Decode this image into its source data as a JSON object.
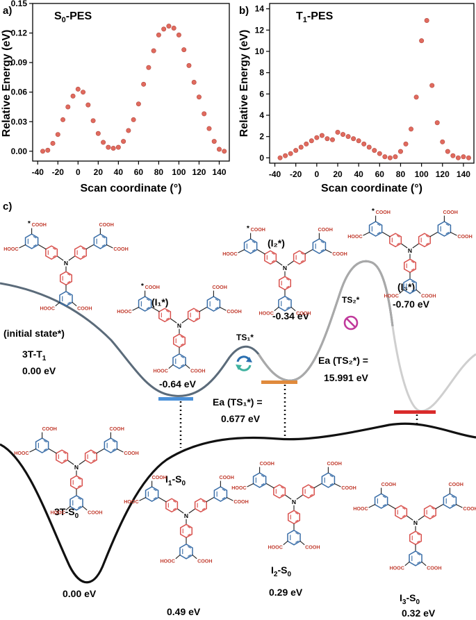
{
  "panel_a": {
    "label": "a)",
    "title_main": "S",
    "title_sub": "0",
    "title_tail": "-PES",
    "xlabel": "Scan coordinate (°)",
    "ylabel": "Relative Energy (eV)"
  },
  "panel_b": {
    "label": "b)",
    "title_main": "T",
    "title_sub": "1",
    "title_tail": "-PES",
    "xlabel": "Scan coordinate (°)",
    "ylabel": "Relative Energy (eV)"
  },
  "panel_c": {
    "label": "c)",
    "initial_state_label": "(initial state*)",
    "t1_state_main": "3T-T",
    "t1_state_sub": "1",
    "t1_state_energy": "0.00 eV",
    "i1_label": "(I₁*)",
    "i1_energy": "-0.64 eV",
    "ts1_label": "TS₁*",
    "i2_label": "(I₂*)",
    "i2_energy": "-0.34 eV",
    "ts2_label": "TS₂*",
    "i3_label": "(I₃*)",
    "i3_energy": "-0.70 eV",
    "ea1_label": "Ea (TS₁*) =",
    "ea1_value": "0.677 eV",
    "ea2_label": "Ea (TS₂*) =",
    "ea2_value": "15.991 eV",
    "s0_state_main": "3T-S",
    "s0_state_sub": "0",
    "s0_state_energy": "0.00 eV",
    "i1s0_main": "I",
    "i1s0_sub": "1",
    "i1s0_tail": "-S",
    "i1s0_sub2": "0",
    "i1s0_energy": "0.49 eV",
    "i2s0_main": "I",
    "i2s0_sub": "2",
    "i2s0_tail": "-S",
    "i2s0_sub2": "0",
    "i2s0_energy": "0.29 eV",
    "i3s0_main": "I",
    "i3s0_sub": "3",
    "i3s0_tail": "-S",
    "i3s0_sub2": "0",
    "i3s0_energy": "0.32 eV",
    "cooh": "COOH",
    "hooc": "HOOC",
    "n_atom": "N",
    "star": "*"
  },
  "colors": {
    "point": "#e06a5e",
    "ring_blue": "#3a6ea8",
    "ring_red": "#d9534f",
    "t1_curve": "#5b6b7a",
    "s0_curve": "#111111",
    "level_i1": "#4a90d9",
    "level_i2": "#e08a3c",
    "level_i3": "#d92b2b",
    "forbid": "#c0399b"
  },
  "chart_data": [
    {
      "type": "scatter",
      "title": "S0-PES",
      "xlabel": "Scan coordinate (°)",
      "ylabel": "Relative Energy (eV)",
      "xlim": [
        -45,
        150
      ],
      "ylim": [
        -0.01,
        0.15
      ],
      "xticks": [
        -40,
        -20,
        0,
        20,
        40,
        60,
        80,
        100,
        120,
        140
      ],
      "yticks": [
        0.0,
        0.03,
        0.06,
        0.09,
        0.12,
        0.15
      ],
      "ytick_labels": [
        "0.00",
        "0.03",
        "0.06",
        "0.09",
        "0.12",
        "0.15"
      ],
      "x": [
        -35,
        -30,
        -25,
        -20,
        -15,
        -10,
        -5,
        0,
        5,
        10,
        15,
        20,
        25,
        30,
        35,
        40,
        45,
        50,
        55,
        60,
        65,
        70,
        75,
        80,
        85,
        90,
        95,
        100,
        105,
        110,
        115,
        120,
        125,
        130,
        135,
        140,
        145
      ],
      "y": [
        0.0,
        0.001,
        0.008,
        0.017,
        0.032,
        0.045,
        0.056,
        0.063,
        0.06,
        0.047,
        0.031,
        0.018,
        0.009,
        0.004,
        0.003,
        0.004,
        0.01,
        0.021,
        0.032,
        0.048,
        0.068,
        0.085,
        0.102,
        0.118,
        0.124,
        0.127,
        0.125,
        0.118,
        0.103,
        0.087,
        0.07,
        0.055,
        0.038,
        0.023,
        0.01,
        0.002,
        0.0
      ]
    },
    {
      "type": "scatter",
      "title": "T1-PES",
      "xlabel": "Scan coordinate (°)",
      "ylabel": "Relative Energy (eV)",
      "xlim": [
        -45,
        150
      ],
      "ylim": [
        -0.5,
        14.5
      ],
      "xticks": [
        -40,
        -20,
        0,
        20,
        40,
        60,
        80,
        100,
        120,
        140
      ],
      "yticks": [
        0,
        2,
        4,
        6,
        8,
        10,
        12,
        14
      ],
      "x": [
        -35,
        -30,
        -25,
        -20,
        -15,
        -10,
        -5,
        0,
        5,
        10,
        15,
        20,
        25,
        30,
        35,
        40,
        45,
        50,
        55,
        60,
        65,
        70,
        75,
        80,
        85,
        90,
        95,
        100,
        105,
        110,
        115,
        120,
        125,
        130,
        135,
        140,
        145
      ],
      "y": [
        0.0,
        0.2,
        0.4,
        0.7,
        1.0,
        1.3,
        1.6,
        1.9,
        2.1,
        1.8,
        1.7,
        2.4,
        2.2,
        2.0,
        1.8,
        1.6,
        1.3,
        1.0,
        0.7,
        0.4,
        0.1,
        0.0,
        0.1,
        0.6,
        1.3,
        2.7,
        5.7,
        11.0,
        12.9,
        6.8,
        3.3,
        1.5,
        0.6,
        0.2,
        0.0,
        0.1,
        0.0
      ]
    }
  ]
}
